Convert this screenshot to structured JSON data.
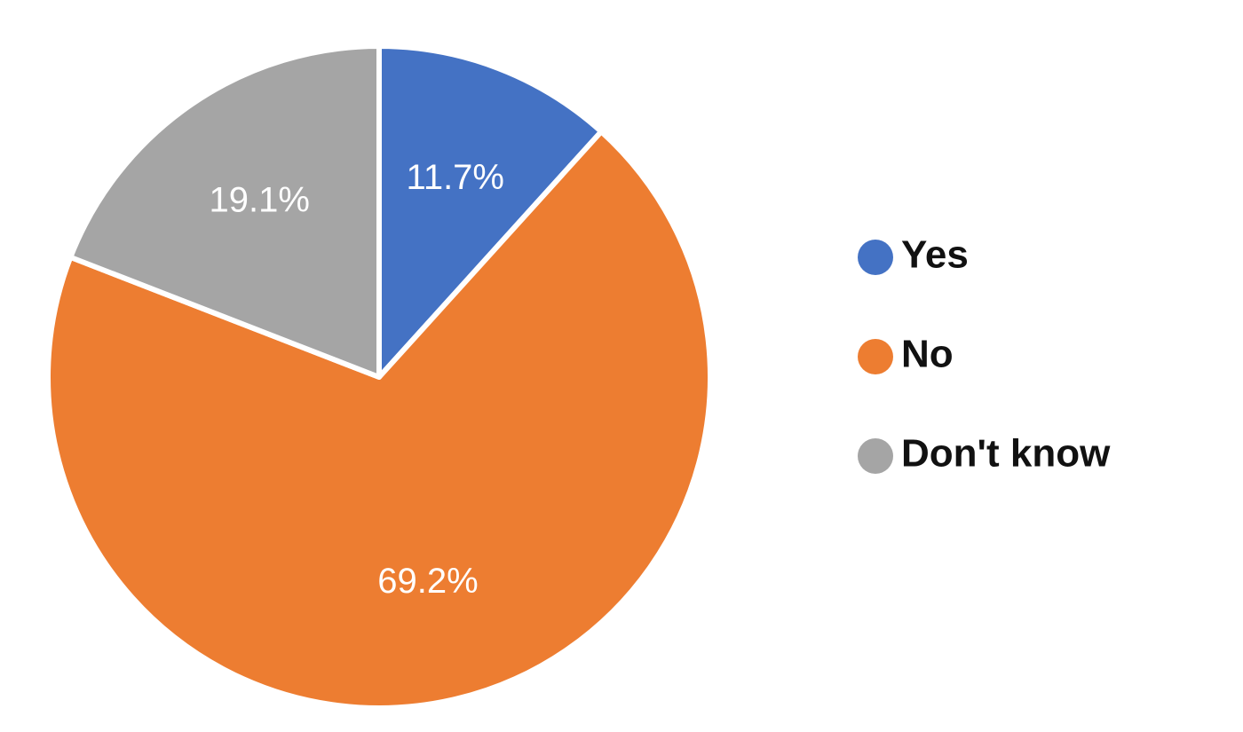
{
  "chart_data": {
    "type": "pie",
    "categories": [
      "Yes",
      "No",
      "Don't know"
    ],
    "values": [
      11.7,
      69.2,
      19.1
    ],
    "value_labels": [
      "11.7%",
      "69.2%",
      "19.1%"
    ],
    "colors": [
      "#4472c4",
      "#ed7d31",
      "#a5a5a5"
    ],
    "legend": "right"
  }
}
